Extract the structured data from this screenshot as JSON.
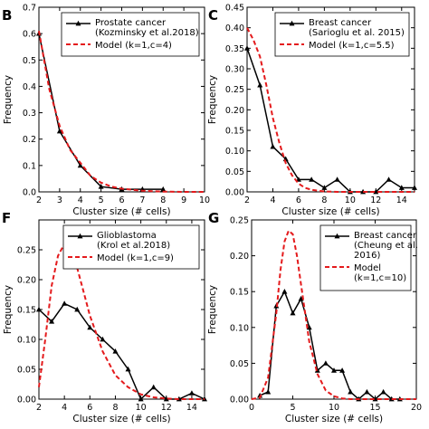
{
  "chart_data": [
    {
      "panel": "B",
      "type": "line",
      "xlabel": "Cluster size (# cells)",
      "ylabel": "Frequency",
      "xlim": [
        2,
        10
      ],
      "ylim": [
        0,
        0.7
      ],
      "xticks": [
        "2",
        "3",
        "4",
        "5",
        "6",
        "7",
        "8",
        "9",
        "10"
      ],
      "yticks": [
        "0.0",
        "0.1",
        "0.2",
        "0.3",
        "0.4",
        "0.5",
        "0.6",
        "0.7"
      ],
      "legend": [
        "Prostate cancer",
        "(Kozminsky et al.2018)",
        "Model (k=1,c=4)"
      ],
      "series": [
        {
          "x": [
            2,
            3,
            4,
            5,
            6,
            7,
            8
          ],
          "y": [
            0.6,
            0.23,
            0.1,
            0.02,
            0.01,
            0.01,
            0.01
          ],
          "style": "data"
        },
        {
          "x": [
            2,
            2.5,
            3,
            3.5,
            4,
            4.5,
            5,
            5.5,
            6,
            7,
            8,
            9,
            10
          ],
          "y": [
            0.61,
            0.39,
            0.25,
            0.16,
            0.11,
            0.06,
            0.035,
            0.02,
            0.012,
            0.004,
            0.001,
            0,
            0
          ],
          "style": "model"
        }
      ]
    },
    {
      "panel": "C",
      "type": "line",
      "xlabel": "Cluster size (# cells)",
      "ylabel": "Frequency",
      "xlim": [
        2,
        15
      ],
      "ylim": [
        0,
        0.45
      ],
      "xticks": [
        "2",
        "4",
        "6",
        "8",
        "10",
        "12",
        "14"
      ],
      "yticks": [
        "0.00",
        "0.05",
        "0.10",
        "0.15",
        "0.20",
        "0.25",
        "0.30",
        "0.35",
        "0.40",
        "0.45"
      ],
      "legend": [
        "Breast cancer",
        "(Sarioglu et al. 2015)",
        "Model (k=1,c=5.5)"
      ],
      "series": [
        {
          "x": [
            2,
            3,
            4,
            5,
            6,
            7,
            8,
            9,
            10,
            11,
            12,
            13,
            14,
            15
          ],
          "y": [
            0.35,
            0.26,
            0.11,
            0.08,
            0.03,
            0.03,
            0.01,
            0.03,
            0,
            0,
            0,
            0.03,
            0.01,
            0.01
          ],
          "style": "data"
        },
        {
          "x": [
            2,
            2.5,
            3,
            3.5,
            4,
            4.5,
            5,
            5.5,
            6,
            6.5,
            7,
            8,
            9,
            10,
            15
          ],
          "y": [
            0.4,
            0.37,
            0.33,
            0.26,
            0.18,
            0.12,
            0.07,
            0.04,
            0.02,
            0.01,
            0.005,
            0.001,
            0,
            0,
            0
          ],
          "style": "model"
        }
      ]
    },
    {
      "panel": "F",
      "type": "line",
      "xlabel": "Cluster size (# cells)",
      "ylabel": "Frequency",
      "xlim": [
        2,
        15
      ],
      "ylim": [
        0,
        0.3
      ],
      "xticks": [
        "2",
        "4",
        "6",
        "8",
        "10",
        "12",
        "14"
      ],
      "yticks": [
        "0.00",
        "0.05",
        "0.10",
        "0.15",
        "0.20",
        "0.25"
      ],
      "legend": [
        "Glioblastoma",
        "(Krol et al.2018)",
        "Model (k=1,c=9)"
      ],
      "series": [
        {
          "x": [
            2,
            3,
            4,
            5,
            6,
            7,
            8,
            9,
            10,
            11,
            12,
            13,
            14,
            15
          ],
          "y": [
            0.15,
            0.13,
            0.16,
            0.15,
            0.12,
            0.1,
            0.08,
            0.05,
            0.0,
            0.02,
            0.0,
            0.0,
            0.01,
            0.0
          ],
          "style": "data"
        },
        {
          "x": [
            2,
            2.5,
            3,
            3.5,
            4,
            4.5,
            5,
            5.5,
            6,
            7,
            8,
            9,
            10,
            11,
            12,
            13,
            14,
            15
          ],
          "y": [
            0.02,
            0.1,
            0.19,
            0.24,
            0.26,
            0.25,
            0.22,
            0.18,
            0.14,
            0.08,
            0.04,
            0.02,
            0.008,
            0.003,
            0.001,
            0,
            0,
            0
          ],
          "style": "model"
        }
      ]
    },
    {
      "panel": "G",
      "type": "line",
      "xlabel": "Cluster size (# cells)",
      "ylabel": "Frequency",
      "xlim": [
        0,
        20
      ],
      "ylim": [
        0,
        0.25
      ],
      "xticks": [
        "0",
        "5",
        "10",
        "15",
        "20"
      ],
      "yticks": [
        "0.00",
        "0.05",
        "0.10",
        "0.15",
        "0.20",
        "0.25"
      ],
      "legend": [
        "Breast cancer",
        "(Cheung et al.",
        "2016)",
        "Model",
        "(k=1,c=10)"
      ],
      "series": [
        {
          "x": [
            1,
            2,
            3,
            4,
            5,
            6,
            7,
            8,
            9,
            10,
            11,
            12,
            13,
            14,
            15,
            16,
            17,
            18
          ],
          "y": [
            0.005,
            0.01,
            0.13,
            0.15,
            0.12,
            0.14,
            0.1,
            0.04,
            0.05,
            0.04,
            0.04,
            0.01,
            0.0,
            0.01,
            0.0,
            0.01,
            0.0,
            0.0
          ],
          "style": "data"
        },
        {
          "x": [
            0,
            1,
            2,
            3,
            3.5,
            4,
            4.5,
            5,
            5.5,
            6,
            7,
            8,
            9,
            10,
            11,
            12,
            13,
            15,
            20
          ],
          "y": [
            0,
            0.002,
            0.03,
            0.12,
            0.18,
            0.22,
            0.235,
            0.23,
            0.2,
            0.16,
            0.08,
            0.035,
            0.012,
            0.004,
            0.001,
            0,
            0,
            0,
            0
          ],
          "style": "model"
        }
      ]
    }
  ]
}
